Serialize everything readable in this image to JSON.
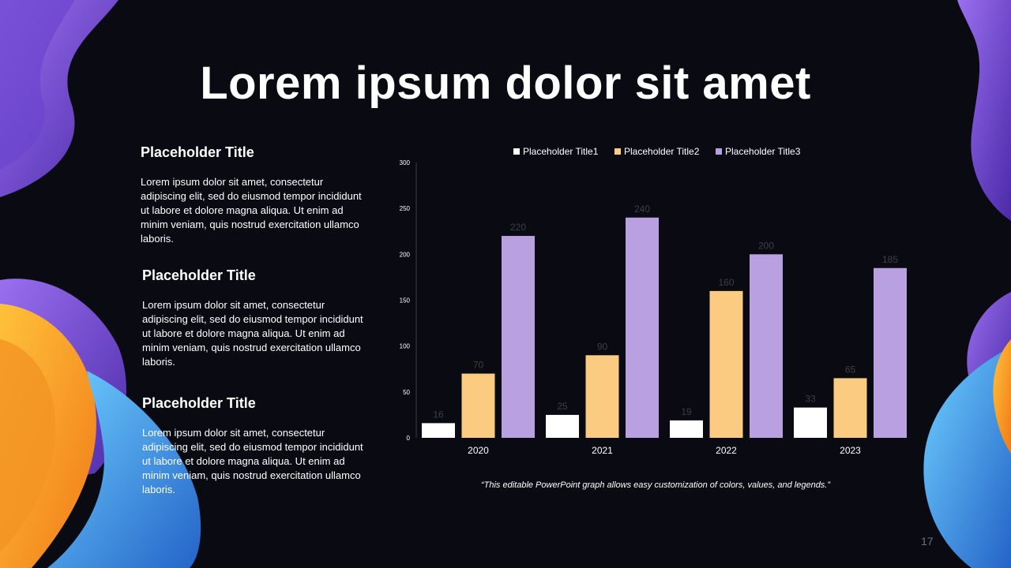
{
  "title": "Lorem ipsum dolor sit amet",
  "blocks": [
    {
      "title": "Placeholder Title",
      "text": "Lorem ipsum dolor sit amet, consectetur adipiscing elit, sed do eiusmod tempor incididunt ut labore et dolore magna aliqua. Ut enim ad minim veniam, quis nostrud exercitation ullamco laboris."
    },
    {
      "title": "Placeholder Title",
      "text": "Lorem ipsum dolor sit amet, consectetur adipiscing elit, sed do eiusmod tempor incididunt ut labore et dolore magna aliqua. Ut enim ad minim veniam, quis nostrud exercitation ullamco laboris."
    },
    {
      "title": "Placeholder Title",
      "text": "Lorem ipsum dolor sit amet, consectetur adipiscing elit, sed do eiusmod tempor incididunt ut labore et dolore magna aliqua. Ut enim ad minim veniam, quis nostrud exercitation ullamco laboris."
    }
  ],
  "caption": "“This editable PowerPoint graph allows easy customization of colors, values, and legends.”",
  "page_number": "17",
  "colors": {
    "background": "#0a0b12",
    "series1": "#ffffff",
    "series2": "#fbcb82",
    "series3": "#b9a0e0",
    "deco_purple": "#7b4fd6",
    "deco_orange": "#f5a623",
    "deco_blue": "#3d9fe0"
  },
  "chart_data": {
    "type": "bar",
    "categories": [
      "2020",
      "2021",
      "2022",
      "2023"
    ],
    "series": [
      {
        "name": "Placeholder Title1",
        "values": [
          16,
          25,
          19,
          33
        ]
      },
      {
        "name": "Placeholder Title2",
        "values": [
          70,
          90,
          160,
          65
        ]
      },
      {
        "name": "Placeholder Title3",
        "values": [
          220,
          240,
          200,
          185
        ]
      }
    ],
    "ylim": [
      0,
      300
    ],
    "yticks": [
      0,
      50,
      100,
      150,
      200,
      250,
      300
    ],
    "legend_position": "top",
    "grid": false,
    "data_labels": true
  }
}
